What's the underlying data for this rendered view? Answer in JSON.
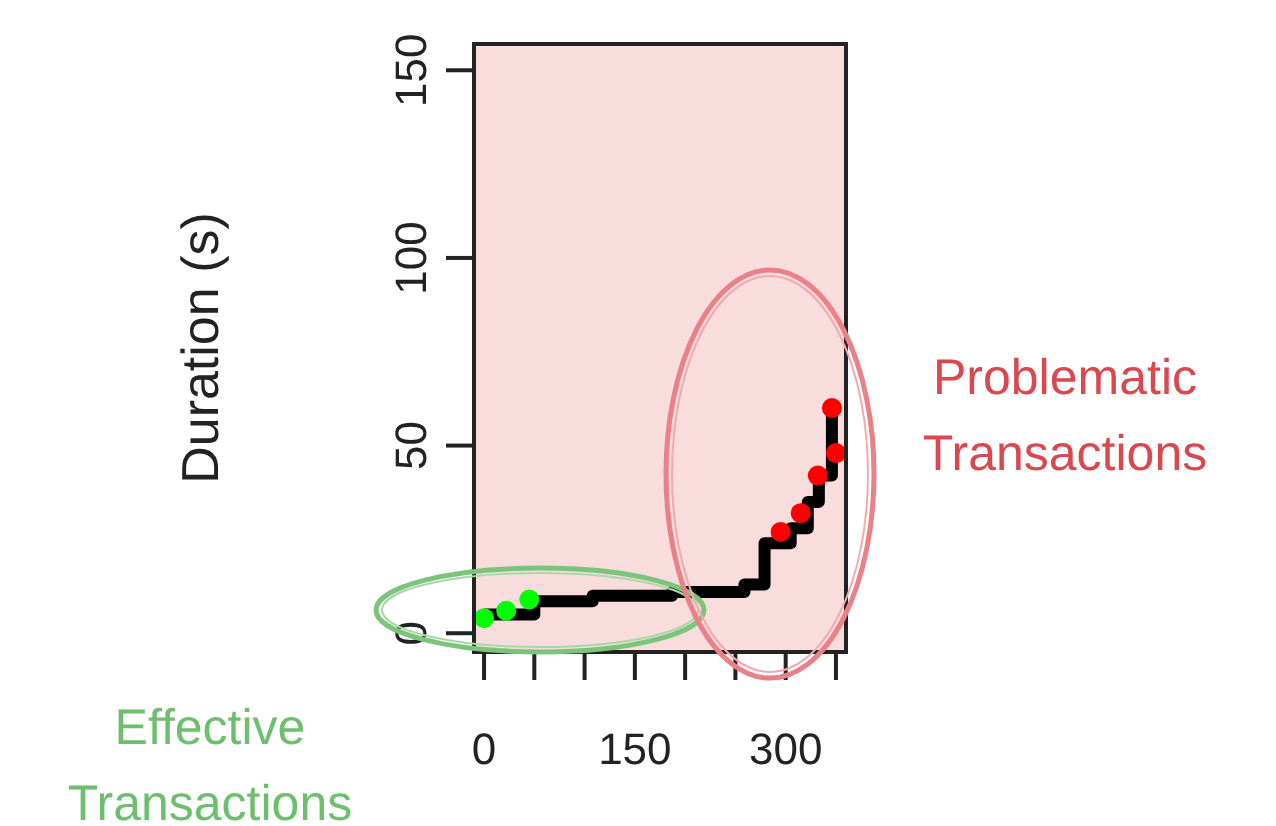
{
  "chart_data": {
    "type": "scatter",
    "ylabel": "Duration (s)",
    "xlim": [
      -10,
      360
    ],
    "ylim": [
      -5,
      157
    ],
    "xticks": [
      0,
      {
        "value": 50,
        "label": null
      },
      {
        "value": 100,
        "label": null
      },
      150,
      {
        "value": 200,
        "label": null
      },
      {
        "value": 250,
        "label": null
      },
      300,
      {
        "value": 350,
        "label": null
      }
    ],
    "yticks": [
      0,
      50,
      100,
      150
    ],
    "series": [
      {
        "type": "step",
        "color": "#000000",
        "marker": "none",
        "x": [
          0,
          50,
          108,
          187,
          259,
          279,
          305,
          322,
          333,
          346,
          346
        ],
        "values": [
          5,
          8.5,
          10,
          11,
          13,
          24,
          28,
          35,
          42,
          48,
          60
        ]
      },
      {
        "color": "#00ff00",
        "marker": "circle",
        "x": [
          0,
          22,
          45
        ],
        "values": [
          4,
          6,
          9
        ]
      },
      {
        "color": "#ff0000",
        "marker": "circle",
        "x": [
          295,
          315,
          332,
          350,
          346
        ],
        "values": [
          27,
          32,
          42,
          48,
          60
        ]
      }
    ],
    "annotations": [
      "Effective Transactions",
      "Problematic Transactions"
    ],
    "grid": false
  }
}
